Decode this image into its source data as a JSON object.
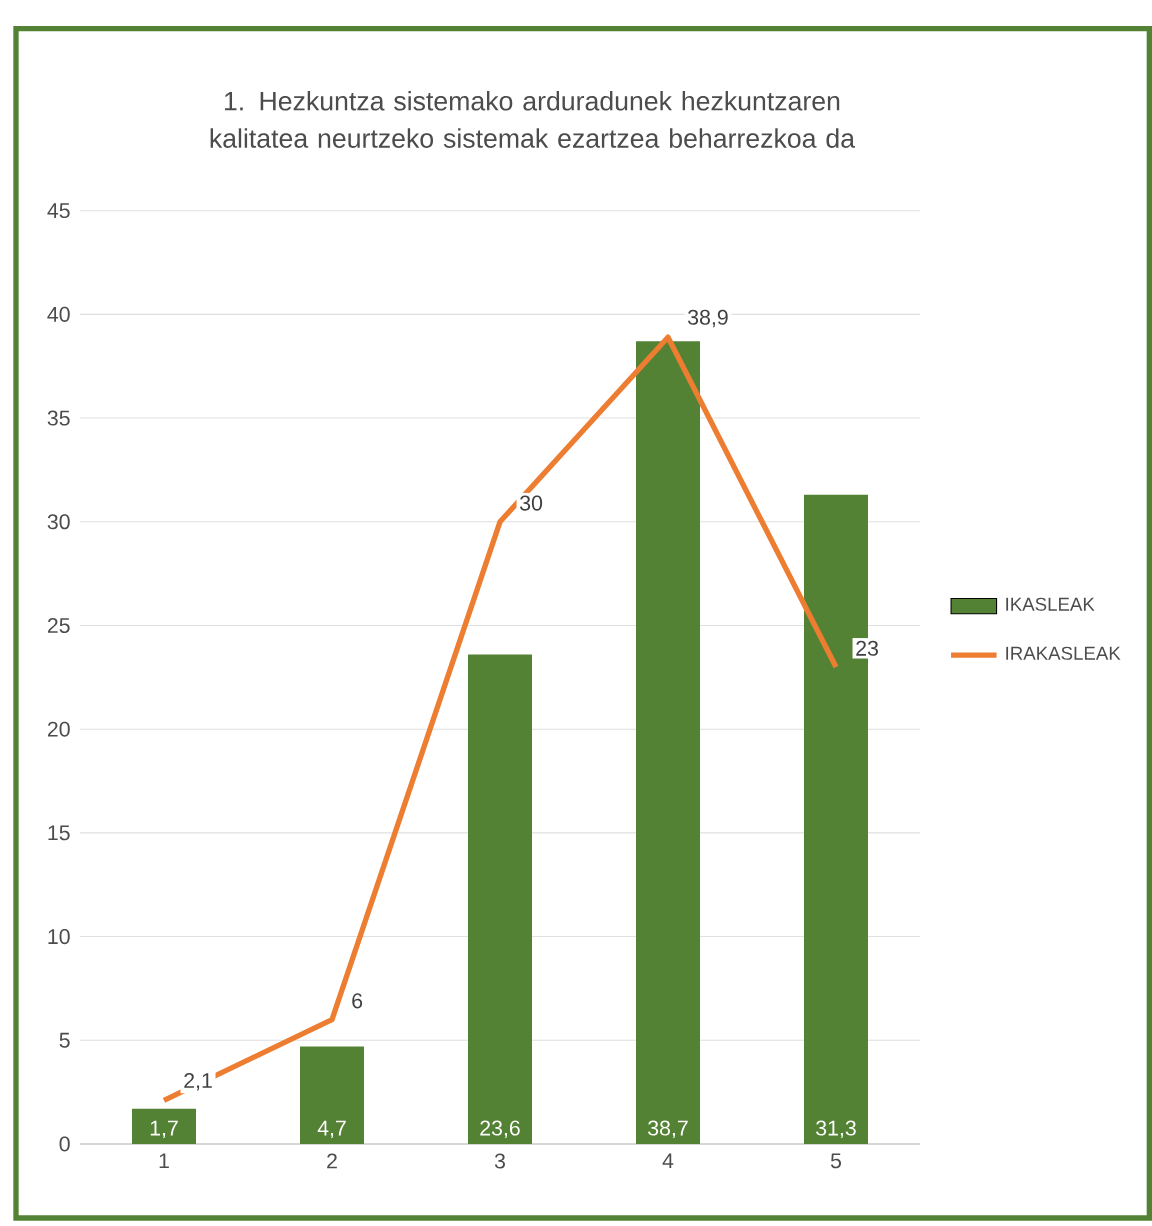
{
  "chart_data": {
    "type": "bar",
    "title": "1. Hezkuntza sistemako arduradunek hezkuntzaren kalitatea neurtzeko sistemak ezartzea beharrezkoa da",
    "categories": [
      "1",
      "2",
      "3",
      "4",
      "5"
    ],
    "series": [
      {
        "name": "IKASLEAK",
        "color": "#548235",
        "values": [
          1.7,
          4.7,
          23.6,
          38.7,
          31.3
        ],
        "value_labels": [
          "1,7",
          "4,7",
          "23,6",
          "38,7",
          "31,3"
        ]
      },
      {
        "name": "IRAKASLEAK",
        "type": "line",
        "color": "#ed7d31",
        "values": [
          2.1,
          6,
          30,
          38.9,
          23
        ],
        "value_labels": [
          "2,1",
          "6",
          "30",
          "38,9",
          "23"
        ]
      }
    ],
    "ylim": [
      0,
      45
    ],
    "yticks": [
      0,
      5,
      10,
      15,
      20,
      25,
      30,
      35,
      40,
      45
    ],
    "grid": "y",
    "legend": "right"
  }
}
